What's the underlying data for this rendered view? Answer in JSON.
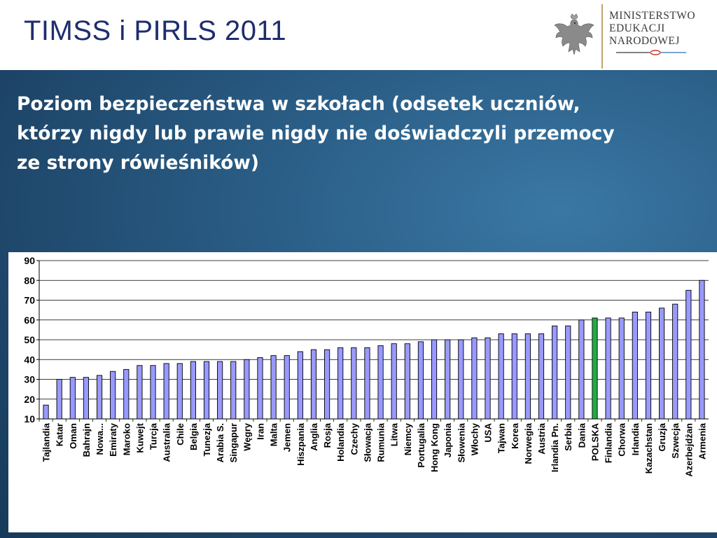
{
  "header": {
    "title": "TIMSS i PIRLS 2011",
    "logo": {
      "emblem_icon": "white-eagle-emblem",
      "lines": [
        "MINISTERSTWO",
        "EDUKACJI",
        "NARODOWEJ"
      ]
    }
  },
  "subtitle_lines": [
    "Poziom bezpieczeństwa w szkołach (odsetek uczniów,",
    "którzy nigdy lub prawie nigdy nie doświadczyli przemocy",
    "ze strony rówieśników)"
  ],
  "colors": {
    "bar": "#9999ff",
    "highlight": "#22aa44",
    "title": "#1f2d6e"
  },
  "chart_data": {
    "type": "bar",
    "categories": [
      "Tajlandia",
      "Katar",
      "Oman",
      "Bahrajn",
      "Nowa...",
      "Emiraty",
      "Maroko",
      "Kuwejt",
      "Turcja",
      "Australia",
      "Chile",
      "Belgia",
      "Tunezja",
      "Arabia S.",
      "Singapur",
      "Węgry",
      "Iran",
      "Malta",
      "Jemen",
      "Hiszpania",
      "Anglia",
      "Rosja",
      "Holandia",
      "Czechy",
      "Słowacja",
      "Rumunia",
      "Litwa",
      "Niemcy",
      "Portugalia",
      "Hong Kong",
      "Japonia",
      "Słowenia",
      "Włochy",
      "USA",
      "Tajwan",
      "Korea",
      "Norwegia",
      "Austria",
      "Irlandia Pn.",
      "Serbia",
      "Dania",
      "POLSKA",
      "Finlandia",
      "Chorwa",
      "Irlandia",
      "Kazachstan",
      "Gruzja",
      "Szwecja",
      "Azerbejdżan",
      "Armenia"
    ],
    "values": [
      17,
      30,
      31,
      31,
      32,
      34,
      35,
      37,
      37,
      38,
      38,
      39,
      39,
      39,
      39,
      40,
      41,
      42,
      42,
      44,
      45,
      45,
      46,
      46,
      46,
      47,
      48,
      48,
      49,
      50,
      50,
      50,
      51,
      51,
      53,
      53,
      53,
      53,
      57,
      57,
      60,
      61,
      61,
      61,
      64,
      64,
      66,
      68,
      75,
      80
    ],
    "highlight_category": "POLSKA",
    "ylim": [
      10,
      90
    ],
    "yticks": [
      10,
      20,
      30,
      40,
      50,
      60,
      70,
      80,
      90
    ],
    "grid": true,
    "title": "",
    "xlabel": "",
    "ylabel": ""
  }
}
